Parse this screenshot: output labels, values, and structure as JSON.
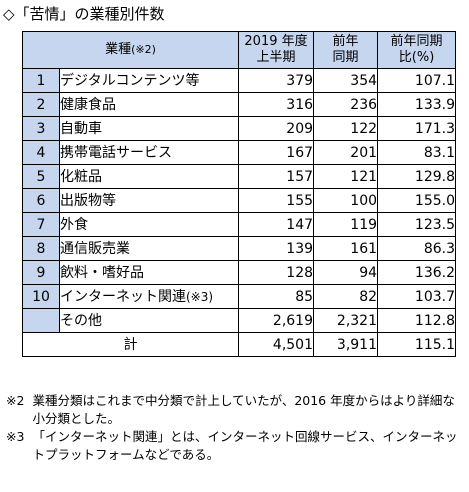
{
  "title": "◇「苦情」の業種別件数",
  "table": {
    "headers": {
      "category": "業種",
      "category_note": "(※2)",
      "col1_line1": "2019 年度",
      "col1_line2": "上半期",
      "col2_line1": "前年",
      "col2_line2": "同期",
      "col3_line1": "前年同期",
      "col3_line2": "比(%)"
    },
    "rows": [
      {
        "no": "1",
        "name": "デジタルコンテンツ等",
        "v1": "379",
        "v2": "354",
        "ratio": "107.1"
      },
      {
        "no": "2",
        "name": "健康食品",
        "v1": "316",
        "v2": "236",
        "ratio": "133.9"
      },
      {
        "no": "3",
        "name": "自動車",
        "v1": "209",
        "v2": "122",
        "ratio": "171.3"
      },
      {
        "no": "4",
        "name": "携帯電話サービス",
        "v1": "167",
        "v2": "201",
        "ratio": "83.1"
      },
      {
        "no": "5",
        "name": "化粧品",
        "v1": "157",
        "v2": "121",
        "ratio": "129.8"
      },
      {
        "no": "6",
        "name": "出版物等",
        "v1": "155",
        "v2": "100",
        "ratio": "155.0"
      },
      {
        "no": "7",
        "name": "外食",
        "v1": "147",
        "v2": "119",
        "ratio": "123.5"
      },
      {
        "no": "8",
        "name": "通信販売業",
        "v1": "139",
        "v2": "161",
        "ratio": "86.3"
      },
      {
        "no": "9",
        "name": "飲料・嗜好品",
        "v1": "128",
        "v2": "94",
        "ratio": "136.2"
      },
      {
        "no": "10",
        "name": "インターネット関連",
        "name_note": "(※3)",
        "v1": "85",
        "v2": "82",
        "ratio": "103.7"
      }
    ],
    "other": {
      "name": "その他",
      "v1": "2,619",
      "v2": "2,321",
      "ratio": "112.8"
    },
    "total": {
      "name": "計",
      "v1": "4,501",
      "v2": "3,911",
      "ratio": "115.1"
    }
  },
  "notes": [
    {
      "mark": "※2",
      "text": "業種分類はこれまで中分類で計上していたが、2016 年度からはより詳細な小分類とした。"
    },
    {
      "mark": "※3",
      "text": "「インターネット関連」とは、インターネット回線サービス、インターネットプラットフォームなどである。"
    }
  ]
}
